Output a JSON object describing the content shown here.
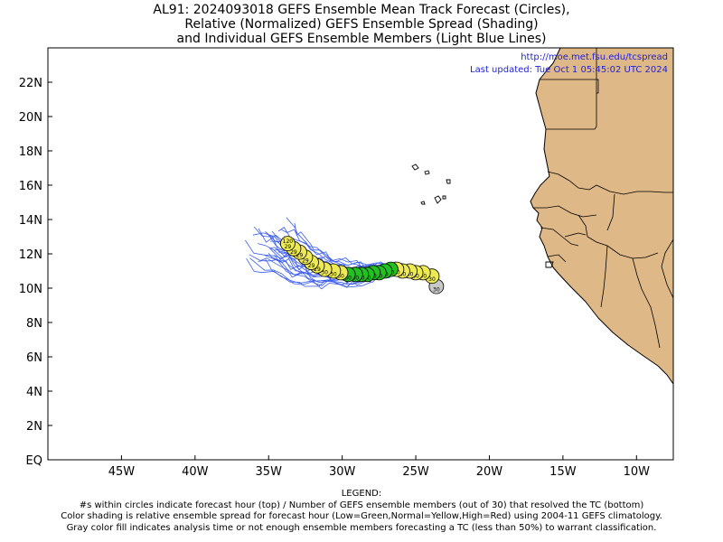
{
  "title": {
    "line1": "AL91: 2024093018 GEFS Ensemble Mean Track Forecast (Circles),",
    "line2": "Relative (Normalized) GEFS Ensemble Spread (Shading)",
    "line3": "and Individual GEFS Ensemble Members (Light Blue Lines)"
  },
  "info": {
    "url": "http://moe.met.fsu.edu/tcspread",
    "updated": "Last updated: Tue Oct  1 05:45:02 UTC 2024"
  },
  "axes": {
    "lon_range": [
      -50,
      -7.5
    ],
    "lat_range": [
      0,
      24
    ],
    "lon_ticks": [
      {
        "value": -45,
        "label": "45W"
      },
      {
        "value": -40,
        "label": "40W"
      },
      {
        "value": -35,
        "label": "35W"
      },
      {
        "value": -30,
        "label": "30W"
      },
      {
        "value": -25,
        "label": "25W"
      },
      {
        "value": -20,
        "label": "20W"
      },
      {
        "value": -15,
        "label": "15W"
      },
      {
        "value": -10,
        "label": "10W"
      }
    ],
    "lat_ticks": [
      {
        "value": 0,
        "label": "EQ"
      },
      {
        "value": 2,
        "label": "2N"
      },
      {
        "value": 4,
        "label": "4N"
      },
      {
        "value": 6,
        "label": "6N"
      },
      {
        "value": 8,
        "label": "8N"
      },
      {
        "value": 10,
        "label": "10N"
      },
      {
        "value": 12,
        "label": "12N"
      },
      {
        "value": 14,
        "label": "14N"
      },
      {
        "value": 16,
        "label": "16N"
      },
      {
        "value": 18,
        "label": "18N"
      },
      {
        "value": 20,
        "label": "20N"
      },
      {
        "value": 22,
        "label": "22N"
      }
    ]
  },
  "colors": {
    "land": "#deb887",
    "member_lines": "#3a5cf0",
    "low_spread": "#22c022",
    "normal_spread": "#eeea55",
    "no_data": "#c8c8c8"
  },
  "track": [
    {
      "lon": -23.6,
      "lat": 10.1,
      "top": "",
      "bottom": "30",
      "spread": "gray"
    },
    {
      "lon": -23.9,
      "lat": 10.7,
      "top": "",
      "bottom": "30",
      "spread": "normal"
    },
    {
      "lon": -24.5,
      "lat": 10.9,
      "top": "",
      "bottom": "30",
      "spread": "normal"
    },
    {
      "lon": -25.0,
      "lat": 10.9,
      "top": "",
      "bottom": "30",
      "spread": "normal"
    },
    {
      "lon": -25.4,
      "lat": 11.0,
      "top": "",
      "bottom": "30",
      "spread": "normal"
    },
    {
      "lon": -25.9,
      "lat": 11.0,
      "top": "",
      "bottom": "30",
      "spread": "normal"
    },
    {
      "lon": -26.3,
      "lat": 11.1,
      "top": "",
      "bottom": "30",
      "spread": "normal"
    },
    {
      "lon": -26.7,
      "lat": 11.1,
      "top": "",
      "bottom": "30",
      "spread": "low"
    },
    {
      "lon": -27.1,
      "lat": 11.0,
      "top": "",
      "bottom": "30",
      "spread": "low"
    },
    {
      "lon": -27.5,
      "lat": 10.9,
      "top": "",
      "bottom": "30",
      "spread": "low"
    },
    {
      "lon": -27.9,
      "lat": 10.9,
      "top": "",
      "bottom": "30",
      "spread": "low"
    },
    {
      "lon": -28.3,
      "lat": 10.8,
      "top": "",
      "bottom": "30",
      "spread": "low"
    },
    {
      "lon": -28.7,
      "lat": 10.8,
      "top": "",
      "bottom": "30",
      "spread": "low"
    },
    {
      "lon": -29.1,
      "lat": 10.8,
      "top": "",
      "bottom": "30",
      "spread": "low"
    },
    {
      "lon": -29.6,
      "lat": 10.8,
      "top": "",
      "bottom": "30",
      "spread": "low"
    },
    {
      "lon": -30.1,
      "lat": 10.9,
      "top": "",
      "bottom": "30",
      "spread": "normal"
    },
    {
      "lon": -30.6,
      "lat": 11.0,
      "top": "",
      "bottom": "30",
      "spread": "normal"
    },
    {
      "lon": -31.2,
      "lat": 11.1,
      "top": "",
      "bottom": "30",
      "spread": "normal"
    },
    {
      "lon": -31.7,
      "lat": 11.3,
      "top": "",
      "bottom": "29",
      "spread": "normal"
    },
    {
      "lon": -32.1,
      "lat": 11.5,
      "top": "",
      "bottom": "29",
      "spread": "normal"
    },
    {
      "lon": -32.5,
      "lat": 11.8,
      "top": "",
      "bottom": "29",
      "spread": "normal"
    },
    {
      "lon": -32.9,
      "lat": 12.1,
      "top": "",
      "bottom": "29",
      "spread": "normal"
    },
    {
      "lon": -33.3,
      "lat": 12.3,
      "top": "",
      "bottom": "29",
      "spread": "normal"
    },
    {
      "lon": -33.7,
      "lat": 12.6,
      "top": "120",
      "bottom": "29",
      "spread": "normal"
    }
  ],
  "legend": {
    "heading": "LEGEND:",
    "line1": "#s within circles indicate forecast hour (top) / Number of GEFS ensemble members (out of 30) that resolved the TC (bottom)",
    "line2": "Color shading is relative ensemble spread for forecast hour (Low=Green,Normal=Yellow,High=Red) using 2004-11 GEFS climatology.",
    "line3": "Gray color fill indicates analysis time or not enough ensemble members forecasting a TC (less than 50%) to warrant classification."
  }
}
